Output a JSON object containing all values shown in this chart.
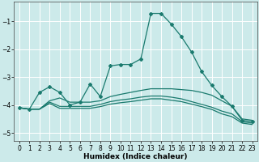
{
  "title": "",
  "xlabel": "Humidex (Indice chaleur)",
  "xlim": [
    -0.5,
    23.5
  ],
  "ylim": [
    -5.3,
    -0.3
  ],
  "yticks": [
    -5,
    -4,
    -3,
    -2,
    -1
  ],
  "xticks": [
    0,
    1,
    2,
    3,
    4,
    5,
    6,
    7,
    8,
    9,
    10,
    11,
    12,
    13,
    14,
    15,
    16,
    17,
    18,
    19,
    20,
    21,
    22,
    23
  ],
  "bg_color": "#cceaea",
  "grid_color": "#ffffff",
  "line_color": "#1a7a6e",
  "lines": [
    {
      "x": [
        0,
        1,
        2,
        3,
        4,
        5,
        6,
        7,
        8,
        9,
        10,
        11,
        12,
        13,
        14,
        15,
        16,
        17,
        18,
        19,
        20,
        21,
        22,
        23
      ],
      "y": [
        -4.1,
        -4.15,
        -3.55,
        -3.35,
        -3.55,
        -4.0,
        -3.9,
        -3.25,
        -3.7,
        -2.6,
        -2.55,
        -2.55,
        -2.35,
        -0.72,
        -0.72,
        -1.1,
        -1.55,
        -2.1,
        -2.8,
        -3.3,
        -3.7,
        -4.05,
        -4.55,
        -4.6
      ],
      "marker": "D",
      "markersize": 2.0,
      "linewidth": 0.9
    },
    {
      "x": [
        0,
        1,
        2,
        3,
        4,
        5,
        6,
        7,
        8,
        9,
        10,
        11,
        12,
        13,
        14,
        15,
        16,
        17,
        18,
        19,
        20,
        21,
        22,
        23
      ],
      "y": [
        -4.1,
        -4.15,
        -4.15,
        -3.85,
        -3.75,
        -3.9,
        -3.9,
        -3.9,
        -3.85,
        -3.7,
        -3.62,
        -3.55,
        -3.48,
        -3.42,
        -3.42,
        -3.42,
        -3.45,
        -3.48,
        -3.55,
        -3.65,
        -3.85,
        -4.05,
        -4.5,
        -4.55
      ],
      "marker": null,
      "markersize": 0,
      "linewidth": 0.9
    },
    {
      "x": [
        0,
        1,
        2,
        3,
        4,
        5,
        6,
        7,
        8,
        9,
        10,
        11,
        12,
        13,
        14,
        15,
        16,
        17,
        18,
        19,
        20,
        21,
        22,
        23
      ],
      "y": [
        -4.1,
        -4.15,
        -4.15,
        -3.9,
        -4.05,
        -4.05,
        -4.05,
        -4.05,
        -3.98,
        -3.88,
        -3.82,
        -3.78,
        -3.72,
        -3.68,
        -3.68,
        -3.72,
        -3.78,
        -3.88,
        -3.98,
        -4.08,
        -4.22,
        -4.32,
        -4.6,
        -4.65
      ],
      "marker": null,
      "markersize": 0,
      "linewidth": 0.9
    },
    {
      "x": [
        0,
        1,
        2,
        3,
        4,
        5,
        6,
        7,
        8,
        9,
        10,
        11,
        12,
        13,
        14,
        15,
        16,
        17,
        18,
        19,
        20,
        21,
        22,
        23
      ],
      "y": [
        -4.1,
        -4.15,
        -4.15,
        -3.95,
        -4.12,
        -4.12,
        -4.12,
        -4.12,
        -4.06,
        -3.97,
        -3.92,
        -3.88,
        -3.83,
        -3.78,
        -3.78,
        -3.83,
        -3.88,
        -3.97,
        -4.06,
        -4.16,
        -4.32,
        -4.42,
        -4.65,
        -4.7
      ],
      "marker": null,
      "markersize": 0,
      "linewidth": 0.9
    }
  ],
  "tick_fontsize": 5.5,
  "label_fontsize": 6.5
}
